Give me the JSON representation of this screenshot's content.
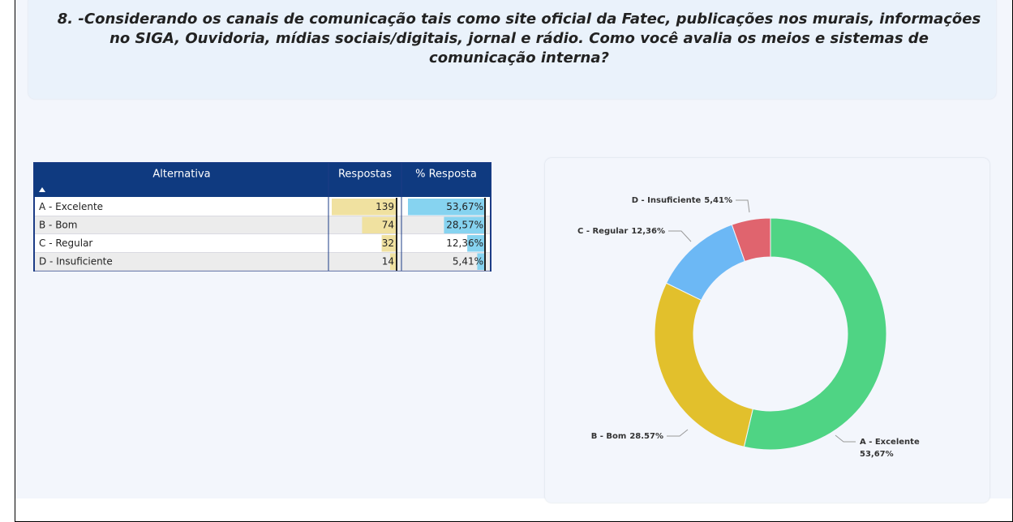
{
  "title": "8. -Considerando os canais de comunicação tais como site oficial da Fatec, publicações nos murais, informações no SIGA, Ouvidoria, mídias sociais/digitais, jornal e rádio. Como você avalia os meios e sistemas de comunicação interna?",
  "table": {
    "columns": [
      "Alternativa",
      "Respostas",
      "% Resposta"
    ],
    "rows": [
      [
        "A - Excelente",
        139,
        {
          "value": 53.67,
          "label": "53,67%"
        }
      ],
      [
        "B - Bom",
        74,
        {
          "value": 28.57,
          "label": "28,57%"
        }
      ],
      [
        "C - Regular",
        32,
        {
          "value": 12.36,
          "label": "12,36%"
        }
      ],
      [
        "D - Insuficiente",
        14,
        {
          "value": 5.41,
          "label": "5,41%"
        }
      ]
    ]
  },
  "chart_data": {
    "type": "donut",
    "categories": [
      "A - Excelente",
      "B - Bom",
      "C - Regular",
      "D - Insuficiente"
    ],
    "values": [
      53.67,
      28.57,
      12.36,
      5.41
    ],
    "value_labels": [
      "53,67%",
      "28.57%",
      "12,36%",
      "5,41%"
    ],
    "colors": [
      "#4fd484",
      "#e2c02c",
      "#6cb8f5",
      "#e0646e"
    ]
  }
}
